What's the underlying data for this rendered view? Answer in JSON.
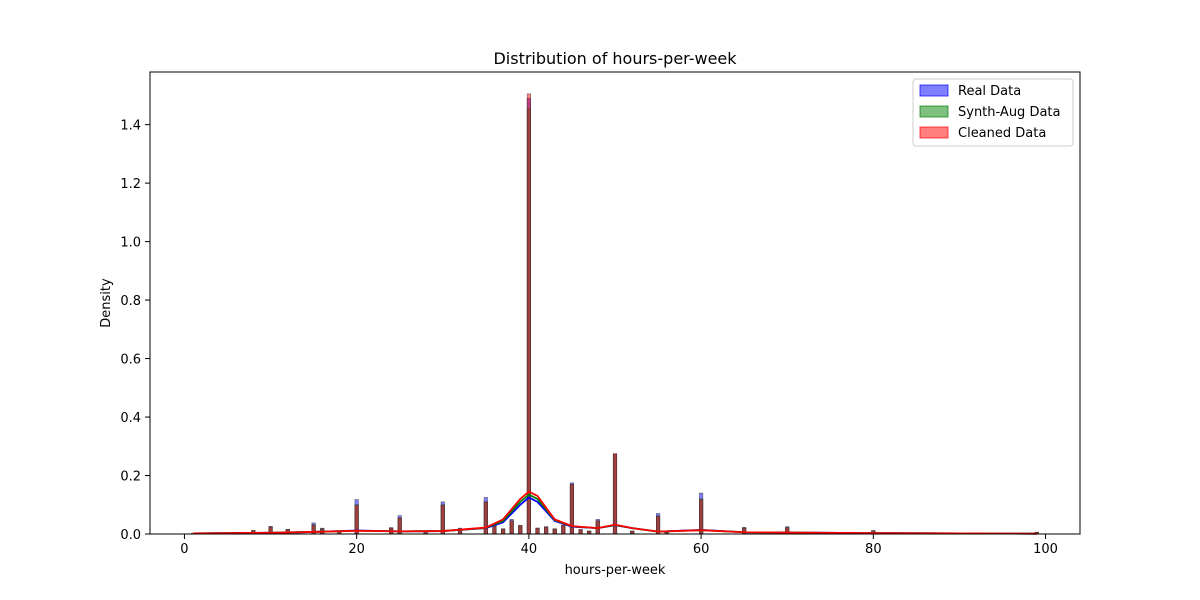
{
  "chart_data": {
    "type": "bar",
    "title": "Distribution of hours-per-week",
    "xlabel": "hours-per-week",
    "ylabel": "Density",
    "xlim": [
      -4,
      104
    ],
    "ylim": [
      0,
      1.58
    ],
    "x_ticks": [
      0,
      20,
      40,
      60,
      80,
      100
    ],
    "y_ticks": [
      0.0,
      0.2,
      0.4,
      0.6,
      0.8,
      1.0,
      1.2,
      1.4
    ],
    "x_tick_labels": [
      "0",
      "20",
      "40",
      "60",
      "80",
      "100"
    ],
    "y_tick_labels": [
      "0.0",
      "0.2",
      "0.4",
      "0.6",
      "0.8",
      "1.0",
      "1.2",
      "1.4"
    ],
    "grid": false,
    "legend_position": "top-right",
    "series": [
      {
        "name": "Real Data",
        "color": "#0000ff",
        "bins": [
          [
            1,
            0.002
          ],
          [
            2,
            0.002
          ],
          [
            3,
            0.003
          ],
          [
            4,
            0.004
          ],
          [
            5,
            0.004
          ],
          [
            6,
            0.005
          ],
          [
            8,
            0.012
          ],
          [
            10,
            0.026
          ],
          [
            12,
            0.016
          ],
          [
            15,
            0.038
          ],
          [
            16,
            0.02
          ],
          [
            18,
            0.01
          ],
          [
            20,
            0.118
          ],
          [
            24,
            0.022
          ],
          [
            25,
            0.063
          ],
          [
            28,
            0.01
          ],
          [
            30,
            0.11
          ],
          [
            32,
            0.02
          ],
          [
            35,
            0.125
          ],
          [
            36,
            0.03
          ],
          [
            37,
            0.018
          ],
          [
            38,
            0.05
          ],
          [
            39,
            0.03
          ],
          [
            40,
            1.49
          ],
          [
            41,
            0.02
          ],
          [
            42,
            0.025
          ],
          [
            43,
            0.018
          ],
          [
            44,
            0.03
          ],
          [
            45,
            0.175
          ],
          [
            46,
            0.015
          ],
          [
            47,
            0.01
          ],
          [
            48,
            0.05
          ],
          [
            50,
            0.272
          ],
          [
            52,
            0.01
          ],
          [
            55,
            0.07
          ],
          [
            56,
            0.005
          ],
          [
            60,
            0.14
          ],
          [
            65,
            0.023
          ],
          [
            70,
            0.025
          ],
          [
            72,
            0.005
          ],
          [
            75,
            0.005
          ],
          [
            80,
            0.012
          ],
          [
            84,
            0.003
          ],
          [
            90,
            0.003
          ],
          [
            99,
            0.006
          ]
        ],
        "kde": [
          [
            1,
            0.002
          ],
          [
            10,
            0.004
          ],
          [
            15,
            0.007
          ],
          [
            20,
            0.012
          ],
          [
            25,
            0.009
          ],
          [
            30,
            0.01
          ],
          [
            35,
            0.02
          ],
          [
            37,
            0.04
          ],
          [
            39,
            0.1
          ],
          [
            40,
            0.125
          ],
          [
            41,
            0.11
          ],
          [
            43,
            0.045
          ],
          [
            45,
            0.025
          ],
          [
            48,
            0.02
          ],
          [
            50,
            0.03
          ],
          [
            52,
            0.02
          ],
          [
            55,
            0.008
          ],
          [
            60,
            0.014
          ],
          [
            65,
            0.006
          ],
          [
            70,
            0.005
          ],
          [
            80,
            0.003
          ],
          [
            90,
            0.002
          ],
          [
            99,
            0.001
          ]
        ]
      },
      {
        "name": "Synth-Aug Data",
        "color": "#008000",
        "bins": [
          [
            1,
            0.002
          ],
          [
            2,
            0.002
          ],
          [
            3,
            0.003
          ],
          [
            4,
            0.004
          ],
          [
            5,
            0.004
          ],
          [
            6,
            0.005
          ],
          [
            8,
            0.012
          ],
          [
            10,
            0.025
          ],
          [
            12,
            0.016
          ],
          [
            15,
            0.032
          ],
          [
            16,
            0.018
          ],
          [
            18,
            0.01
          ],
          [
            20,
            0.1
          ],
          [
            24,
            0.02
          ],
          [
            25,
            0.055
          ],
          [
            28,
            0.01
          ],
          [
            30,
            0.1
          ],
          [
            32,
            0.018
          ],
          [
            35,
            0.11
          ],
          [
            36,
            0.028
          ],
          [
            37,
            0.017
          ],
          [
            38,
            0.045
          ],
          [
            39,
            0.028
          ],
          [
            40,
            1.455
          ],
          [
            41,
            0.02
          ],
          [
            42,
            0.024
          ],
          [
            43,
            0.017
          ],
          [
            44,
            0.03
          ],
          [
            45,
            0.17
          ],
          [
            46,
            0.015
          ],
          [
            47,
            0.01
          ],
          [
            48,
            0.045
          ],
          [
            50,
            0.272
          ],
          [
            52,
            0.01
          ],
          [
            55,
            0.062
          ],
          [
            56,
            0.005
          ],
          [
            60,
            0.12
          ],
          [
            65,
            0.02
          ],
          [
            70,
            0.022
          ],
          [
            72,
            0.005
          ],
          [
            75,
            0.005
          ],
          [
            80,
            0.011
          ],
          [
            84,
            0.003
          ],
          [
            90,
            0.003
          ],
          [
            99,
            0.006
          ]
        ],
        "kde": [
          [
            1,
            0.002
          ],
          [
            10,
            0.004
          ],
          [
            15,
            0.007
          ],
          [
            20,
            0.011
          ],
          [
            25,
            0.009
          ],
          [
            30,
            0.01
          ],
          [
            35,
            0.021
          ],
          [
            37,
            0.045
          ],
          [
            39,
            0.11
          ],
          [
            40,
            0.135
          ],
          [
            41,
            0.12
          ],
          [
            43,
            0.048
          ],
          [
            45,
            0.026
          ],
          [
            48,
            0.02
          ],
          [
            50,
            0.031
          ],
          [
            52,
            0.02
          ],
          [
            55,
            0.008
          ],
          [
            60,
            0.013
          ],
          [
            65,
            0.006
          ],
          [
            70,
            0.005
          ],
          [
            80,
            0.003
          ],
          [
            90,
            0.002
          ],
          [
            99,
            0.001
          ]
        ]
      },
      {
        "name": "Cleaned Data",
        "color": "#ff0000",
        "bins": [
          [
            1,
            0.002
          ],
          [
            2,
            0.002
          ],
          [
            3,
            0.003
          ],
          [
            4,
            0.004
          ],
          [
            5,
            0.004
          ],
          [
            6,
            0.005
          ],
          [
            8,
            0.012
          ],
          [
            10,
            0.024
          ],
          [
            12,
            0.015
          ],
          [
            15,
            0.03
          ],
          [
            16,
            0.017
          ],
          [
            18,
            0.01
          ],
          [
            20,
            0.098
          ],
          [
            24,
            0.02
          ],
          [
            25,
            0.055
          ],
          [
            28,
            0.01
          ],
          [
            30,
            0.098
          ],
          [
            32,
            0.018
          ],
          [
            35,
            0.11
          ],
          [
            36,
            0.028
          ],
          [
            37,
            0.017
          ],
          [
            38,
            0.045
          ],
          [
            39,
            0.028
          ],
          [
            40,
            1.505
          ],
          [
            41,
            0.02
          ],
          [
            42,
            0.024
          ],
          [
            43,
            0.017
          ],
          [
            44,
            0.03
          ],
          [
            45,
            0.17
          ],
          [
            46,
            0.015
          ],
          [
            47,
            0.01
          ],
          [
            48,
            0.045
          ],
          [
            50,
            0.275
          ],
          [
            52,
            0.01
          ],
          [
            55,
            0.06
          ],
          [
            56,
            0.005
          ],
          [
            60,
            0.118
          ],
          [
            65,
            0.02
          ],
          [
            70,
            0.022
          ],
          [
            72,
            0.005
          ],
          [
            75,
            0.005
          ],
          [
            80,
            0.011
          ],
          [
            84,
            0.003
          ],
          [
            90,
            0.003
          ],
          [
            99,
            0.006
          ]
        ],
        "kde": [
          [
            1,
            0.002
          ],
          [
            10,
            0.004
          ],
          [
            15,
            0.007
          ],
          [
            20,
            0.011
          ],
          [
            25,
            0.009
          ],
          [
            30,
            0.01
          ],
          [
            35,
            0.022
          ],
          [
            37,
            0.05
          ],
          [
            39,
            0.12
          ],
          [
            40,
            0.145
          ],
          [
            41,
            0.13
          ],
          [
            43,
            0.05
          ],
          [
            45,
            0.027
          ],
          [
            48,
            0.02
          ],
          [
            50,
            0.032
          ],
          [
            52,
            0.02
          ],
          [
            55,
            0.008
          ],
          [
            60,
            0.013
          ],
          [
            65,
            0.006
          ],
          [
            70,
            0.005
          ],
          [
            80,
            0.003
          ],
          [
            90,
            0.002
          ],
          [
            99,
            0.001
          ]
        ]
      }
    ]
  }
}
